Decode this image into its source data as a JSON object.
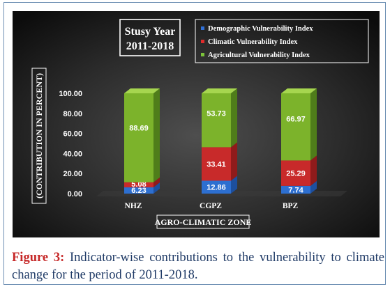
{
  "chart_data": {
    "type": "bar",
    "stacked": true,
    "title": "Stusy Year",
    "subtitle": "2011-2018",
    "xlabel": "AGRO-CLIMATIC ZONE",
    "ylabel": "(CONTRIBUTION IN PERCENT)",
    "categories": [
      "NHZ",
      "CGPZ",
      "BPZ"
    ],
    "yticks": [
      "0.00",
      "20.00",
      "40.00",
      "60.00",
      "80.00",
      "100.00"
    ],
    "ylim": [
      0,
      100
    ],
    "legend_position": "top-right",
    "series": [
      {
        "name": "Demographic Vulnerability Index",
        "values": [
          6.23,
          12.86,
          7.74
        ],
        "labels": [
          "6.23",
          "12.86",
          "7.74"
        ],
        "color": "#2d6fd0",
        "side_color": "#1d4f9e",
        "top_color": "#5a91e6",
        "marker_color": "#2f6fd6"
      },
      {
        "name": "Climatic Vulnerability Index",
        "values": [
          5.08,
          33.41,
          25.29
        ],
        "labels": [
          "5.08",
          "33.41",
          "25.29"
        ],
        "color": "#c82a2a",
        "side_color": "#8f1b1b",
        "top_color": "#e05252",
        "marker_color": "#e02b2b"
      },
      {
        "name": "Agricultural Vulnerability Index",
        "values": [
          88.69,
          53.73,
          66.97
        ],
        "labels": [
          "88.69",
          "53.73",
          "66.97"
        ],
        "color": "#7cb32b",
        "side_color": "#4f7d1a",
        "top_color": "#a6d64f",
        "marker_color": "#7bc23a"
      }
    ]
  },
  "caption": {
    "label": "Figure 3:",
    "text": " Indicator-wise contributions to the vulnerability to climate change for the period of 2011-2018."
  }
}
